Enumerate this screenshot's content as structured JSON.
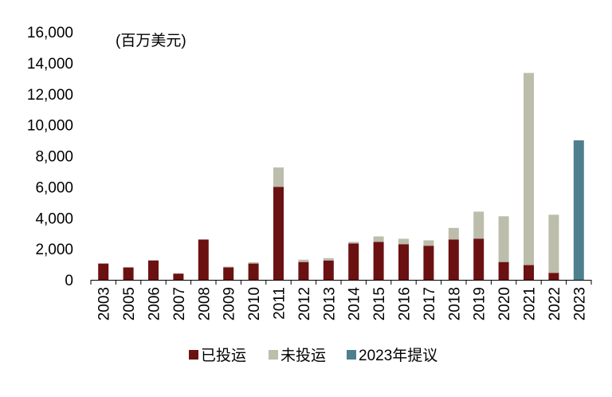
{
  "chart_data": {
    "type": "bar",
    "stacked": true,
    "unit_label": "(百万美元)",
    "categories": [
      "2003",
      "2005",
      "2006",
      "2007",
      "2008",
      "2009",
      "2010",
      "2011",
      "2012",
      "2013",
      "2014",
      "2015",
      "2016",
      "2017",
      "2018",
      "2019",
      "2020",
      "2021",
      "2022",
      "2023"
    ],
    "series": [
      {
        "name": "已投运",
        "color": "#6b1111",
        "values": [
          1050,
          800,
          1250,
          400,
          2600,
          800,
          1050,
          6000,
          1150,
          1250,
          2350,
          2450,
          2300,
          2200,
          2600,
          2650,
          1150,
          950,
          450,
          0
        ]
      },
      {
        "name": "未投运",
        "color": "#bcbdab",
        "values": [
          0,
          0,
          0,
          0,
          0,
          50,
          80,
          1250,
          150,
          150,
          100,
          350,
          350,
          350,
          750,
          1750,
          2950,
          12400,
          3750,
          0
        ]
      },
      {
        "name": "2023年提议",
        "color": "#4e7f8e",
        "values": [
          0,
          0,
          0,
          0,
          0,
          0,
          0,
          0,
          0,
          0,
          0,
          0,
          0,
          0,
          0,
          0,
          0,
          0,
          0,
          9000
        ]
      }
    ],
    "y_ticks": [
      "0",
      "2,000",
      "4,000",
      "6,000",
      "8,000",
      "10,000",
      "12,000",
      "14,000",
      "16,000"
    ],
    "ylim": [
      0,
      16000
    ],
    "grid": false,
    "legend_position": "bottom"
  }
}
